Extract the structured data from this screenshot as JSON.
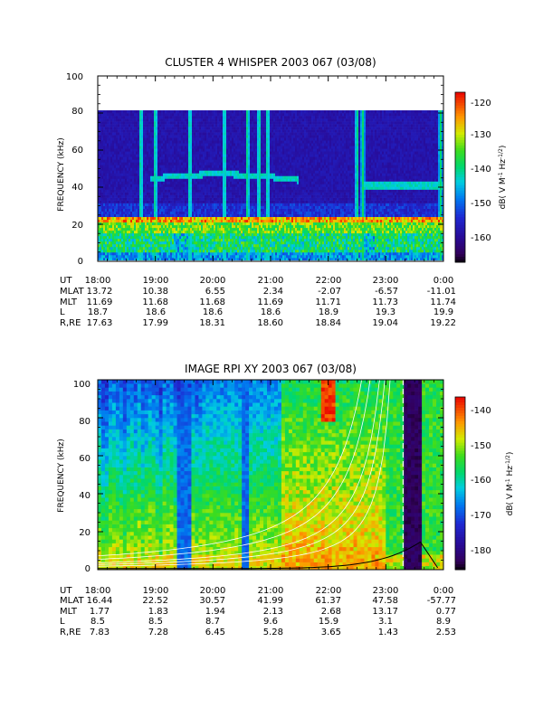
{
  "chart_data": [
    {
      "type": "heatmap",
      "title": "CLUSTER 4 WHISPER 2003 067 (03/08)",
      "ylabel": "FREQUENCY (kHz)",
      "yticks": [
        "0",
        "20",
        "40",
        "60",
        "80",
        "100"
      ],
      "ylim": [
        0,
        100
      ],
      "data_max_frequency": 80,
      "xlim_hours": [
        18,
        24
      ],
      "colorbar": {
        "label": "dB( V M^-1 Hz^-1/2 )",
        "label_main": "dB( V M",
        "label_exp1": "-1",
        "label_mid": " Hz",
        "label_exp2": "-1/2",
        "label_end": ")",
        "range": [
          -167,
          -118
        ],
        "ticks": [
          "-120",
          "-130",
          "-140",
          "-150",
          "-160"
        ],
        "tick_values": [
          -120,
          -130,
          -140,
          -150,
          -160
        ]
      },
      "features": {
        "emission_band_khz": [
          14,
          24
        ],
        "narrowband_line_khz": [
          42,
          46,
          40
        ],
        "broadband_bursts_hours": [
          18.75,
          19.0,
          19.6,
          20.2,
          20.6,
          20.8,
          20.95,
          22.5,
          22.6,
          23.95
        ]
      },
      "ephemeris": {
        "labels": [
          "UT",
          "MLAT",
          "MLT",
          "L",
          "R,RE"
        ],
        "UT": [
          "18:00",
          "19:00",
          "20:00",
          "21:00",
          "22:00",
          "23:00",
          "0:00"
        ],
        "MLAT": [
          "13.72",
          "10.38",
          "6.55",
          "2.34",
          "-2.07",
          "-6.57",
          "-11.01"
        ],
        "MLT": [
          "11.69",
          "11.68",
          "11.68",
          "11.69",
          "11.71",
          "11.73",
          "11.74"
        ],
        "L": [
          "18.7",
          "18.6",
          "18.6",
          "18.6",
          "18.9",
          "19.3",
          "19.9"
        ],
        "R,RE": [
          "17.63",
          "17.99",
          "18.31",
          "18.60",
          "18.84",
          "19.04",
          "19.22"
        ]
      }
    },
    {
      "type": "heatmap",
      "title": "IMAGE RPI XY 2003 067 (03/08)",
      "ylabel": "FREQUENCY (kHz)",
      "yticks": [
        "0",
        "20",
        "40",
        "60",
        "80",
        "100"
      ],
      "ylim": [
        0,
        100
      ],
      "xlim_hours": [
        18,
        24
      ],
      "colorbar": {
        "label": "dB( V M^-1 Hz^-1/2 )",
        "label_main": "dB( V M",
        "label_exp1": "-1",
        "label_mid": " Hz",
        "label_exp2": "-1/2",
        "label_end": ")",
        "range": [
          -186,
          -137
        ],
        "ticks": [
          "-140",
          "-150",
          "-160",
          "-170",
          "-180"
        ],
        "tick_values": [
          -140,
          -150,
          -160,
          -170,
          -180
        ]
      },
      "features": {
        "perigee_hours": [
          23.3,
          23.6
        ],
        "high_intensity_hours": [
          21.85,
          22.15
        ],
        "dashed_line_hour": 23.3
      },
      "ephemeris": {
        "labels": [
          "UT",
          "MLAT",
          "MLT",
          "L",
          "R,RE"
        ],
        "UT": [
          "18:00",
          "19:00",
          "20:00",
          "21:00",
          "22:00",
          "23:00",
          "0:00"
        ],
        "MLAT": [
          "16.44",
          "22.52",
          "30.57",
          "41.99",
          "61.37",
          "47.58",
          "-57.77"
        ],
        "MLT": [
          "1.77",
          "1.83",
          "1.94",
          "2.13",
          "2.68",
          "13.17",
          "0.77"
        ],
        "L": [
          "8.5",
          "8.5",
          "8.7",
          "9.6",
          "15.9",
          "3.1",
          "8.9"
        ],
        "R,RE": [
          "7.83",
          "7.28",
          "6.45",
          "5.28",
          "3.65",
          "1.43",
          "2.53"
        ]
      }
    }
  ]
}
